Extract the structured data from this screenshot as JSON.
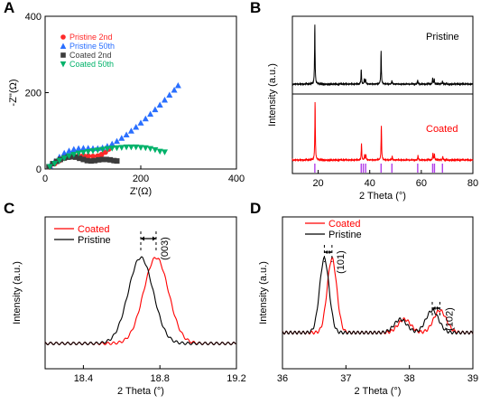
{
  "chart_data": [
    {
      "panel": "A",
      "type": "scatter",
      "xlabel": "Z'(Ω)",
      "ylabel": "-Z''(Ω)",
      "xlim": [
        0,
        400
      ],
      "ylim": [
        0,
        400
      ],
      "xticks": [
        "0",
        "200",
        "400"
      ],
      "yticks": [
        "0",
        "200",
        "400"
      ],
      "legend_position": "top-left",
      "series": [
        {
          "name": "Pristine 2nd",
          "color": "#ff2a2a",
          "marker": "circle",
          "points": [
            [
              10,
              5
            ],
            [
              20,
              14
            ],
            [
              30,
              22
            ],
            [
              40,
              28
            ],
            [
              50,
              32
            ],
            [
              60,
              34
            ],
            [
              70,
              35
            ],
            [
              80,
              35
            ],
            [
              90,
              34
            ],
            [
              100,
              33
            ],
            [
              110,
              34
            ],
            [
              118,
              38
            ],
            [
              126,
              44
            ],
            [
              133,
              52
            ],
            [
              140,
              60
            ]
          ]
        },
        {
          "name": "Pristine 50th",
          "color": "#2a6fff",
          "marker": "triangle-up",
          "points": [
            [
              10,
              8
            ],
            [
              20,
              20
            ],
            [
              30,
              32
            ],
            [
              40,
              42
            ],
            [
              50,
              48
            ],
            [
              60,
              52
            ],
            [
              70,
              54
            ],
            [
              80,
              55
            ],
            [
              90,
              55
            ],
            [
              100,
              54
            ],
            [
              110,
              54
            ],
            [
              120,
              56
            ],
            [
              130,
              60
            ],
            [
              140,
              66
            ],
            [
              150,
              73
            ],
            [
              160,
              81
            ],
            [
              170,
              90
            ],
            [
              180,
              100
            ],
            [
              190,
              110
            ],
            [
              200,
              121
            ],
            [
              210,
              132
            ],
            [
              220,
              144
            ],
            [
              230,
              156
            ],
            [
              240,
              168
            ],
            [
              250,
              181
            ],
            [
              260,
              194
            ],
            [
              270,
              207
            ],
            [
              278,
              219
            ]
          ]
        },
        {
          "name": "Coated 2nd",
          "color": "#3c3c3c",
          "marker": "square",
          "points": [
            [
              8,
              6
            ],
            [
              16,
              14
            ],
            [
              24,
              20
            ],
            [
              32,
              25
            ],
            [
              40,
              29
            ],
            [
              48,
              31
            ],
            [
              56,
              32
            ],
            [
              64,
              31
            ],
            [
              72,
              28
            ],
            [
              80,
              25
            ],
            [
              88,
              22
            ],
            [
              96,
              21
            ],
            [
              104,
              22
            ],
            [
              112,
              24
            ],
            [
              120,
              25
            ],
            [
              128,
              25
            ],
            [
              136,
              24
            ],
            [
              144,
              22
            ],
            [
              150,
              21
            ]
          ]
        },
        {
          "name": "Coated 50th",
          "color": "#00b26a",
          "marker": "triangle-down",
          "points": [
            [
              10,
              6
            ],
            [
              20,
              14
            ],
            [
              30,
              22
            ],
            [
              40,
              28
            ],
            [
              50,
              34
            ],
            [
              60,
              38
            ],
            [
              70,
              41
            ],
            [
              80,
              43
            ],
            [
              90,
              45
            ],
            [
              100,
              47
            ],
            [
              110,
              49
            ],
            [
              120,
              51
            ],
            [
              130,
              53
            ],
            [
              140,
              54
            ],
            [
              150,
              55
            ],
            [
              160,
              56
            ],
            [
              170,
              57
            ],
            [
              180,
              57
            ],
            [
              190,
              57
            ],
            [
              200,
              56
            ],
            [
              210,
              55
            ],
            [
              220,
              53
            ],
            [
              230,
              50
            ],
            [
              240,
              46
            ],
            [
              250,
              44
            ]
          ]
        }
      ]
    },
    {
      "panel": "B",
      "type": "line",
      "xlabel": "2 Theta (°)",
      "ylabel": "Intensity (a.u.)",
      "xlim": [
        10,
        80
      ],
      "xticks": [
        "20",
        "40",
        "60",
        "80"
      ],
      "series": [
        {
          "name": "Pristine",
          "color": "#000000",
          "peaks": [
            [
              18.7,
              1.0
            ],
            [
              36.7,
              0.25
            ],
            [
              37.9,
              0.08
            ],
            [
              38.4,
              0.08
            ],
            [
              44.4,
              0.55
            ],
            [
              48.6,
              0.06
            ],
            [
              58.6,
              0.07
            ],
            [
              64.4,
              0.1
            ],
            [
              65.0,
              0.09
            ],
            [
              68.2,
              0.05
            ]
          ]
        },
        {
          "name": "Coated",
          "color": "#ff0000",
          "peaks": [
            [
              18.8,
              1.0
            ],
            [
              36.8,
              0.28
            ],
            [
              38.0,
              0.09
            ],
            [
              38.5,
              0.09
            ],
            [
              44.5,
              0.6
            ],
            [
              48.7,
              0.07
            ],
            [
              58.7,
              0.08
            ],
            [
              64.5,
              0.12
            ],
            [
              65.1,
              0.1
            ],
            [
              68.3,
              0.06
            ]
          ]
        }
      ],
      "reference_ticks": [
        18.7,
        36.7,
        37.5,
        38.4,
        44.4,
        48.6,
        58.6,
        64.4,
        65.1,
        68.2
      ],
      "reference_color": "#b13fe8"
    },
    {
      "panel": "C",
      "type": "line",
      "xlabel": "2 Theta (°)",
      "ylabel": "Intensity (a.u.)",
      "xlim": [
        18.2,
        19.2
      ],
      "xticks": [
        "18.4",
        "18.8",
        "19.2"
      ],
      "annotation": "(003)",
      "series": [
        {
          "name": "Coated",
          "color": "#ff0000",
          "peak_center": 18.78
        },
        {
          "name": "Pristine",
          "color": "#000000",
          "peak_center": 18.7
        }
      ]
    },
    {
      "panel": "D",
      "type": "line",
      "xlabel": "2 Theta (°)",
      "ylabel": "Intensity (a.u.)",
      "xlim": [
        36,
        39
      ],
      "xticks": [
        "36",
        "37",
        "38",
        "39"
      ],
      "annotations": [
        "(101)",
        "(102)"
      ],
      "series": [
        {
          "name": "Coated",
          "color": "#ff0000",
          "peaks": [
            [
              36.78,
              1.0
            ],
            [
              37.92,
              0.18
            ],
            [
              38.48,
              0.3
            ]
          ]
        },
        {
          "name": "Pristine",
          "color": "#000000",
          "peaks": [
            [
              36.66,
              1.0
            ],
            [
              37.86,
              0.18
            ],
            [
              38.36,
              0.3
            ]
          ]
        }
      ]
    }
  ],
  "labels": {
    "panelA": "A",
    "panelB": "B",
    "panelC": "C",
    "panelD": "D",
    "a_legend": [
      "Pristine 2nd",
      "Pristine 50th",
      "Coated 2nd",
      "Coated 50th"
    ],
    "b_pristine": "Pristine",
    "b_coated": "Coated",
    "c_ann": "(003)",
    "d_ann1": "(101)",
    "d_ann2": "(102)"
  }
}
